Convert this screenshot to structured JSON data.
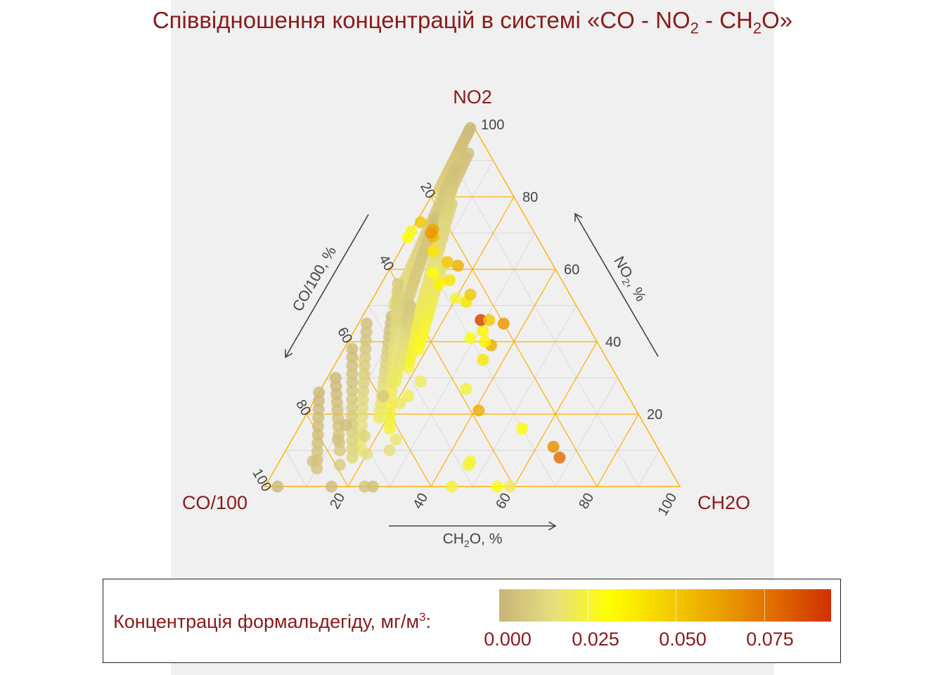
{
  "title": {
    "prefix": "Співвідношення концентрацій в системі «CO - NO",
    "sub1": "2",
    "middle": " - CH",
    "sub2": "2",
    "suffix": "O»"
  },
  "colors": {
    "title": "#8b1a1a",
    "grid_major": "#ffb000",
    "grid_minor": "#d8d8d8",
    "panel": "#f0f0f0",
    "gradient": [
      "#c8b478",
      "#e6e080",
      "#ffff00",
      "#f5d000",
      "#eaa000",
      "#e06a00",
      "#d03000"
    ]
  },
  "legend": {
    "title_text": "Концентрація формальдегіду, мг/м",
    "title_sup": "3",
    "title_colon": ":",
    "ticks": [
      "0.000",
      "0.025",
      "0.050",
      "0.075"
    ]
  },
  "chart_data": {
    "type": "scatter",
    "subtype": "ternary",
    "vertices": {
      "top": "NO2",
      "left": "CO/100",
      "right": "CH2O"
    },
    "axis_arrows": {
      "left": {
        "main": "CO/100, %"
      },
      "right": {
        "main": "NO",
        "sub": "2",
        "rest": ", %"
      },
      "bottom": {
        "main": "CH",
        "sub": "2",
        "rest": "O, %"
      }
    },
    "tick_labels": [
      "20",
      "40",
      "60",
      "80",
      "100"
    ],
    "color_scale": {
      "min": 0.0,
      "max": 0.094,
      "label": "Концентрація формальдегіду, мг/м3"
    },
    "points": [
      {
        "co": 0.97,
        "no2": 0.0,
        "ch2o": 0.03,
        "c": 0.002
      },
      {
        "co": 0.84,
        "no2": 0.0,
        "ch2o": 0.16,
        "c": 0.003
      },
      {
        "co": 0.76,
        "no2": 0.0,
        "ch2o": 0.24,
        "c": 0.006
      },
      {
        "co": 0.74,
        "no2": 0.0,
        "ch2o": 0.26,
        "c": 0.004
      },
      {
        "co": 0.44,
        "no2": 0.0,
        "ch2o": 0.56,
        "c": 0.03
      },
      {
        "co": 0.41,
        "no2": 0.0,
        "ch2o": 0.59,
        "c": 0.02
      },
      {
        "co": 0.55,
        "no2": 0.0,
        "ch2o": 0.45,
        "c": 0.024
      },
      {
        "co": 0.48,
        "no2": 0.06,
        "ch2o": 0.46,
        "c": 0.025
      },
      {
        "co": 0.47,
        "no2": 0.07,
        "ch2o": 0.46,
        "c": 0.025
      },
      {
        "co": 0.38,
        "no2": 0.21,
        "ch2o": 0.41,
        "c": 0.058
      },
      {
        "co": 0.3,
        "no2": 0.16,
        "ch2o": 0.54,
        "c": 0.03
      },
      {
        "co": 0.25,
        "no2": 0.11,
        "ch2o": 0.64,
        "c": 0.068
      },
      {
        "co": 0.25,
        "no2": 0.08,
        "ch2o": 0.67,
        "c": 0.078
      },
      {
        "co": 0.38,
        "no2": 0.27,
        "ch2o": 0.35,
        "c": 0.025
      },
      {
        "co": 0.3,
        "no2": 0.35,
        "ch2o": 0.35,
        "c": 0.04
      },
      {
        "co": 0.26,
        "no2": 0.39,
        "ch2o": 0.35,
        "c": 0.058
      },
      {
        "co": 0.26,
        "no2": 0.43,
        "ch2o": 0.31,
        "c": 0.035
      },
      {
        "co": 0.25,
        "no2": 0.46,
        "ch2o": 0.29,
        "c": 0.09
      },
      {
        "co": 0.23,
        "no2": 0.46,
        "ch2o": 0.31,
        "c": 0.05
      },
      {
        "co": 0.2,
        "no2": 0.45,
        "ch2o": 0.35,
        "c": 0.065
      },
      {
        "co": 0.27,
        "no2": 0.57,
        "ch2o": 0.16,
        "c": 0.04
      },
      {
        "co": 0.23,
        "no2": 0.61,
        "ch2o": 0.16,
        "c": 0.058
      },
      {
        "co": 0.25,
        "no2": 0.62,
        "ch2o": 0.13,
        "c": 0.05
      },
      {
        "co": 0.26,
        "no2": 0.51,
        "ch2o": 0.23,
        "c": 0.04
      },
      {
        "co": 0.24,
        "no2": 0.53,
        "ch2o": 0.23,
        "c": 0.05
      },
      {
        "co": 0.25,
        "no2": 0.69,
        "ch2o": 0.06,
        "c": 0.055
      },
      {
        "co": 0.24,
        "no2": 0.71,
        "ch2o": 0.05,
        "c": 0.06
      },
      {
        "co": 0.25,
        "no2": 0.7,
        "ch2o": 0.05,
        "c": 0.065
      },
      {
        "co": 0.26,
        "no2": 0.73,
        "ch2o": 0.01,
        "c": 0.05
      },
      {
        "co": 0.27,
        "no2": 0.65,
        "ch2o": 0.08,
        "c": 0.04
      },
      {
        "co": 0.31,
        "no2": 0.74,
        "ch2o": -0.05,
        "c": 0.028
      },
      {
        "co": 0.34,
        "no2": 0.75,
        "ch2o": -0.09,
        "c": 0.03
      },
      {
        "co": 0.3,
        "no2": 0.56,
        "ch2o": 0.14,
        "c": 0.035
      },
      {
        "co": 0.27,
        "no2": 0.4,
        "ch2o": 0.33,
        "c": 0.035
      },
      {
        "co": 0.3,
        "no2": 0.41,
        "ch2o": 0.29,
        "c": 0.03
      },
      {
        "co": 0.3,
        "no2": 0.59,
        "ch2o": 0.11,
        "c": 0.03
      },
      {
        "co": 0.28,
        "no2": 0.52,
        "ch2o": 0.2,
        "c": 0.025
      },
      {
        "co": 0.65,
        "no2": 0.1,
        "ch2o": 0.25,
        "c": 0.015
      },
      {
        "co": 0.62,
        "no2": 0.13,
        "ch2o": 0.25,
        "c": 0.018
      },
      {
        "co": 0.69,
        "no2": 0.14,
        "ch2o": 0.17,
        "c": 0.012
      },
      {
        "co": 0.59,
        "no2": 0.25,
        "ch2o": 0.16,
        "c": 0.008
      },
      {
        "co": 0.56,
        "no2": 0.23,
        "ch2o": 0.21,
        "c": 0.02
      },
      {
        "co": 0.53,
        "no2": 0.25,
        "ch2o": 0.22,
        "c": 0.022
      },
      {
        "co": 0.48,
        "no2": 0.29,
        "ch2o": 0.23,
        "c": 0.02
      },
      {
        "co": 0.85,
        "no2": 0.07,
        "ch2o": 0.08,
        "c": 0.005
      },
      {
        "co": 0.79,
        "no2": 0.06,
        "ch2o": 0.15,
        "c": 0.008
      },
      {
        "co": 0.76,
        "no2": 0.13,
        "ch2o": 0.11,
        "c": 0.006
      },
      {
        "co": 0.71,
        "no2": 0.09,
        "ch2o": 0.2,
        "c": 0.015
      },
      {
        "co": 0.72,
        "no2": 0.17,
        "ch2o": 0.11,
        "c": 0.004
      }
    ],
    "bands": [
      {
        "no2_from": 0.99,
        "no2_to": 0.82,
        "co_from": 0.01,
        "co_to": 0.17,
        "steps": 22,
        "c_from": 0.002,
        "c_to": 0.01
      },
      {
        "no2_from": 0.92,
        "no2_to": 0.58,
        "co_from": 0.05,
        "co_to": 0.36,
        "steps": 30,
        "c_from": 0.004,
        "c_to": 0.014
      },
      {
        "no2_from": 0.88,
        "no2_to": 0.5,
        "co_from": 0.1,
        "co_to": 0.44,
        "steps": 30,
        "c_from": 0.004,
        "c_to": 0.016
      },
      {
        "no2_from": 0.74,
        "no2_to": 0.45,
        "co_from": 0.22,
        "co_to": 0.45,
        "steps": 24,
        "c_from": 0.004,
        "c_to": 0.01
      },
      {
        "no2_from": 0.82,
        "no2_to": 0.42,
        "co_from": 0.14,
        "co_to": 0.43,
        "steps": 28,
        "c_from": 0.008,
        "c_to": 0.022
      },
      {
        "no2_from": 0.78,
        "no2_to": 0.36,
        "co_from": 0.16,
        "co_to": 0.48,
        "steps": 28,
        "c_from": 0.01,
        "c_to": 0.026
      },
      {
        "no2_from": 0.7,
        "no2_to": 0.33,
        "co_from": 0.22,
        "co_to": 0.49,
        "steps": 24,
        "c_from": 0.012,
        "c_to": 0.026
      },
      {
        "no2_from": 0.62,
        "no2_to": 0.38,
        "co_from": 0.26,
        "co_to": 0.44,
        "steps": 18,
        "c_from": 0.015,
        "c_to": 0.028
      },
      {
        "no2_from": 0.5,
        "no2_to": 0.29,
        "co_from": 0.4,
        "co_to": 0.54,
        "steps": 14,
        "c_from": 0.006,
        "c_to": 0.022
      },
      {
        "no2_from": 0.47,
        "no2_to": 0.19,
        "co_from": 0.46,
        "co_to": 0.63,
        "steps": 16,
        "c_from": 0.003,
        "c_to": 0.02
      },
      {
        "no2_from": 0.56,
        "no2_to": 0.16,
        "co_from": 0.4,
        "co_to": 0.62,
        "steps": 20,
        "c_from": 0.008,
        "c_to": 0.025
      },
      {
        "no2_from": 0.45,
        "no2_to": 0.1,
        "co_from": 0.53,
        "co_to": 0.72,
        "steps": 16,
        "c_from": 0.004,
        "c_to": 0.018
      },
      {
        "no2_from": 0.38,
        "no2_to": 0.08,
        "co_from": 0.6,
        "co_to": 0.75,
        "steps": 14,
        "c_from": 0.003,
        "c_to": 0.012
      },
      {
        "no2_from": 0.3,
        "no2_to": 0.1,
        "co_from": 0.68,
        "co_to": 0.77,
        "steps": 10,
        "c_from": 0.002,
        "c_to": 0.008
      },
      {
        "no2_from": 0.26,
        "no2_to": 0.05,
        "co_from": 0.74,
        "co_to": 0.85,
        "steps": 10,
        "c_from": 0.002,
        "c_to": 0.006
      }
    ]
  }
}
